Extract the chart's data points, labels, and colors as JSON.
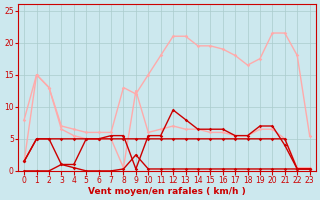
{
  "background_color": "#cce8ee",
  "grid_color": "#aacccc",
  "xlabel": "Vent moyen/en rafales ( km/h )",
  "xlabel_color": "#cc0000",
  "xlabel_fontsize": 6.5,
  "tick_color": "#cc0000",
  "tick_fontsize": 5.5,
  "xlim": [
    -0.5,
    23.5
  ],
  "ylim": [
    0,
    26
  ],
  "yticks": [
    0,
    5,
    10,
    15,
    20,
    25
  ],
  "xticks": [
    0,
    1,
    2,
    3,
    4,
    5,
    6,
    7,
    8,
    9,
    10,
    11,
    12,
    13,
    14,
    15,
    16,
    17,
    18,
    19,
    20,
    21,
    22,
    23
  ],
  "line_light_pink_max_x": [
    0,
    1,
    2,
    3,
    4,
    5,
    6,
    7,
    8,
    9,
    10,
    11,
    12,
    13,
    14,
    15,
    16,
    17,
    18,
    19,
    20,
    21,
    22,
    23
  ],
  "line_light_pink_max_y": [
    8,
    15,
    13,
    7,
    6.5,
    6,
    6,
    6,
    13,
    12,
    15,
    18,
    21,
    21,
    19.5,
    19.5,
    19,
    18,
    16.5,
    17.5,
    21.5,
    21.5,
    18,
    5.5
  ],
  "line_light_pink_mid_x": [
    0,
    1,
    2,
    3,
    4,
    5,
    6,
    7,
    8,
    9,
    10,
    11,
    12,
    13,
    14,
    15,
    16,
    17,
    18,
    19,
    20,
    21,
    22,
    23
  ],
  "line_light_pink_mid_y": [
    1.5,
    15,
    13,
    6.5,
    5.5,
    5,
    5,
    5,
    0.5,
    12.5,
    6,
    6.5,
    7,
    6.5,
    6.5,
    6,
    6,
    5.5,
    5.5,
    6.5,
    6.5,
    5,
    0.5,
    0.5
  ],
  "line_dark_red_top_x": [
    0,
    1,
    2,
    3,
    4,
    5,
    6,
    7,
    8,
    9,
    10,
    11,
    12,
    13,
    14,
    15,
    16,
    17,
    18,
    19,
    20,
    21,
    22,
    23
  ],
  "line_dark_red_top_y": [
    1.5,
    5,
    5,
    1,
    1,
    5,
    5,
    5.5,
    5.5,
    0.3,
    5.5,
    5.5,
    9.5,
    8,
    6.5,
    6.5,
    6.5,
    5.5,
    5.5,
    7,
    7,
    4,
    0.3,
    0.3
  ],
  "line_dark_red_flat_x": [
    0,
    1,
    2,
    3,
    4,
    5,
    6,
    7,
    8,
    9,
    10,
    11,
    12,
    13,
    14,
    15,
    16,
    17,
    18,
    19,
    20,
    21,
    22,
    23
  ],
  "line_dark_red_flat_y": [
    1.5,
    5,
    5,
    5,
    5,
    5,
    5,
    5,
    5,
    5,
    5,
    5,
    5,
    5,
    5,
    5,
    5,
    5,
    5,
    5,
    5,
    5,
    0.3,
    0.3
  ],
  "line_dark_red_bottom_x": [
    0,
    1,
    2,
    3,
    4,
    5,
    6,
    7,
    8,
    9,
    10,
    11,
    12,
    13,
    14,
    15,
    16,
    17,
    18,
    19,
    20,
    21,
    22,
    23
  ],
  "line_dark_red_bottom_y": [
    0,
    0,
    0,
    1,
    0.5,
    0,
    0,
    0,
    0.3,
    2.5,
    0.3,
    0.3,
    0.3,
    0.3,
    0.3,
    0.3,
    0.3,
    0.3,
    0.3,
    0.3,
    0.3,
    0.3,
    0.3,
    0.3
  ],
  "light_pink": "#ffaaaa",
  "dark_red": "#cc0000",
  "medium_red": "#dd5555"
}
